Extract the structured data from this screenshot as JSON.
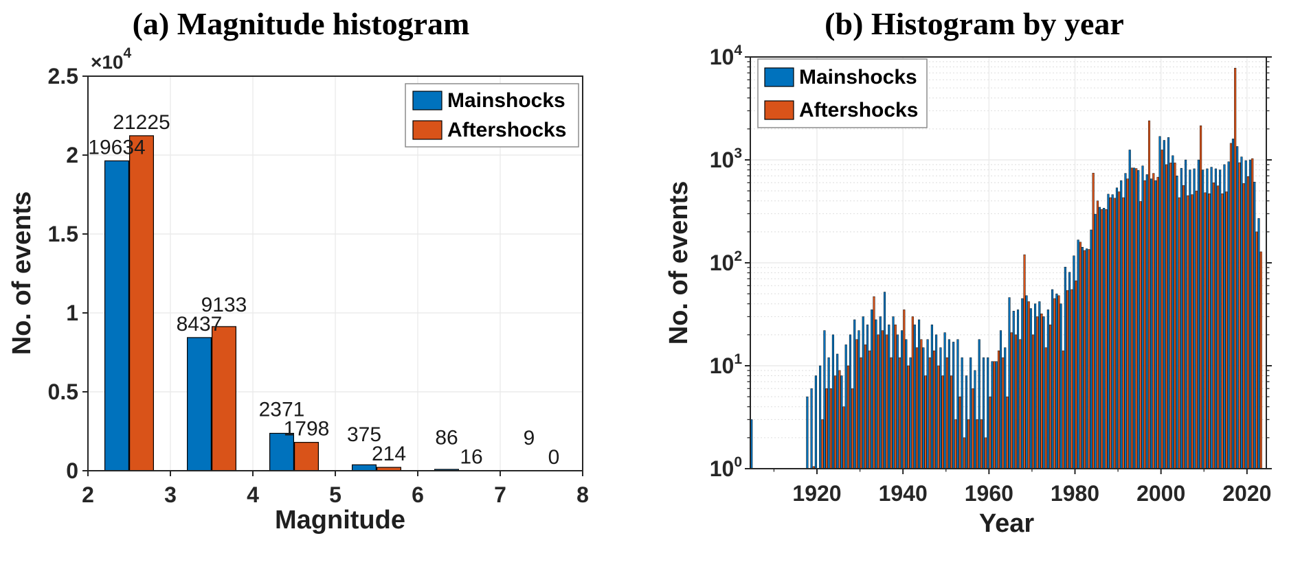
{
  "figure": {
    "background": "#ffffff",
    "axis_color": "#262626",
    "grid_major_color": "#ebebeb",
    "grid_minor_color": "#dedede",
    "bar_edge_color": "#000000",
    "series_colors": {
      "mainshocks": "#0072BD",
      "aftershocks": "#D95319"
    },
    "legend_border_color": "#8c8c8c"
  },
  "chart_data": [
    {
      "type": "bar",
      "panel": "a",
      "title": "(a) Magnitude histogram",
      "xlabel": "Magnitude",
      "ylabel": "No. of events",
      "y_scale": "linear",
      "ylim": [
        0,
        25000
      ],
      "y_exponent_base": "×10",
      "y_exponent_power": "4",
      "x_ticks": [
        2,
        3,
        4,
        5,
        6,
        7,
        8
      ],
      "y_ticks": [
        "0",
        "0.5",
        "1",
        "1.5",
        "2",
        "2.5"
      ],
      "y_tick_values": [
        0,
        5000,
        10000,
        15000,
        20000,
        25000
      ],
      "bin_centers": [
        2.5,
        3.5,
        4.5,
        5.5,
        6.5,
        7.5
      ],
      "grid": true,
      "legend_position": "top-right",
      "series": [
        {
          "name": "Mainshocks",
          "values": [
            19634,
            8437,
            2371,
            375,
            86,
            9
          ]
        },
        {
          "name": "Aftershocks",
          "values": [
            21225,
            9133,
            1798,
            214,
            16,
            0
          ]
        }
      ]
    },
    {
      "type": "bar",
      "panel": "b",
      "title": "(b) Histogram by year",
      "xlabel": "Year",
      "ylabel": "No. of events",
      "y_scale": "log",
      "ylim": [
        1,
        10000
      ],
      "y_tick_exponents": [
        0,
        1,
        2,
        3,
        4
      ],
      "y_tick_base": "10",
      "x_ticks": [
        1920,
        1940,
        1960,
        1980,
        2000,
        2020
      ],
      "x_range": [
        1904.5,
        2024.5
      ],
      "years_start": 1905,
      "grid": true,
      "legend_position": "top-left",
      "series": [
        {
          "name": "Mainshocks",
          "values": [
            3,
            0,
            0,
            0,
            0,
            0,
            0,
            0,
            0,
            0,
            0,
            0,
            0,
            5,
            6,
            8,
            10,
            22,
            12,
            20,
            13,
            8,
            16,
            20,
            28,
            22,
            30,
            25,
            35,
            28,
            30,
            52,
            25,
            30,
            20,
            22,
            18,
            12,
            25,
            28,
            15,
            18,
            25,
            20,
            15,
            21,
            18,
            17,
            18,
            12,
            8,
            12,
            9,
            18,
            12,
            12,
            11,
            11,
            22,
            15,
            46,
            34,
            35,
            45,
            48,
            36,
            40,
            42,
            30,
            35,
            55,
            50,
            40,
            91,
            81,
            117,
            167,
            142,
            137,
            209,
            297,
            347,
            340,
            465,
            460,
            535,
            630,
            740,
            1250,
            835,
            790,
            875,
            720,
            655,
            630,
            1690,
            1550,
            1650,
            1100,
            700,
            830,
            1000,
            800,
            820,
            1000,
            800,
            820,
            850,
            820,
            800,
            900,
            960,
            1600,
            1350,
            1070,
            985,
            1000,
            610,
            270
          ]
        },
        {
          "name": "Aftershocks",
          "values": [
            0,
            0,
            0,
            0,
            0,
            0,
            0,
            0,
            0,
            0,
            0,
            0,
            0,
            0,
            1,
            0,
            3,
            6,
            6,
            8,
            9,
            4,
            10,
            6,
            18,
            12,
            16,
            14,
            47,
            20,
            22,
            20,
            12,
            25,
            12,
            35,
            10,
            30,
            15,
            18,
            8,
            12,
            14,
            10,
            8,
            12,
            8,
            3,
            5,
            2,
            3,
            6,
            3,
            3,
            2,
            5,
            11,
            14,
            12,
            5,
            21,
            20,
            18,
            120,
            42,
            20,
            30,
            32,
            15,
            25,
            45,
            48,
            14,
            54,
            55,
            67,
            159,
            132,
            135,
            745,
            400,
            331,
            330,
            430,
            425,
            490,
            430,
            655,
            835,
            825,
            395,
            630,
            2400,
            740,
            680,
            1250,
            900,
            935,
            935,
            430,
            565,
            450,
            460,
            500,
            2150,
            480,
            470,
            600,
            560,
            470,
            490,
            1450,
            7800,
            940,
            590,
            690,
            1030,
            200,
            128
          ]
        }
      ]
    }
  ]
}
